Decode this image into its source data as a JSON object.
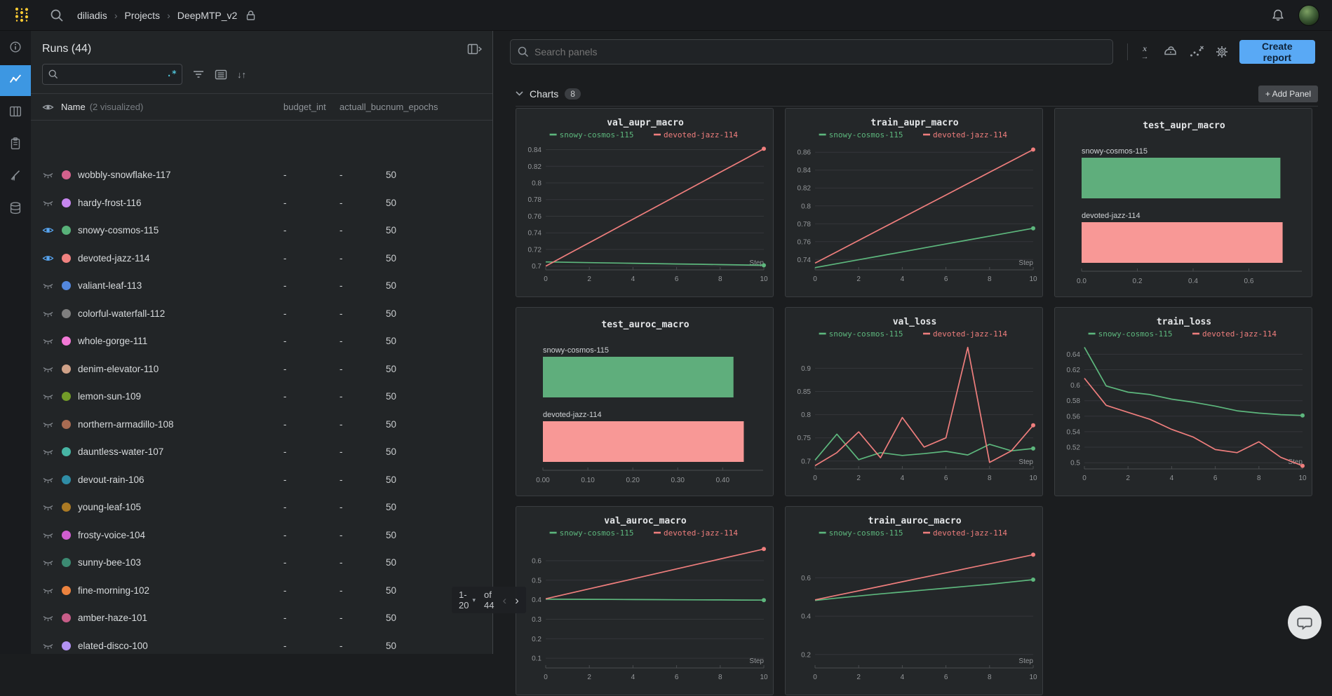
{
  "topbar": {
    "breadcrumb": [
      "diliadis",
      "Projects",
      "DeepMTP_v2"
    ]
  },
  "icons": {
    "regex": ".*",
    "sort": "↓↑",
    "add": "+",
    "caret": "▾",
    "sep": "›",
    "chev_left": "‹",
    "chev_right": "›",
    "xaxis_x": "x",
    "xaxis_arrow": "→"
  },
  "runs": {
    "title": "Runs (44)",
    "search_value": "",
    "name_header": "Name",
    "visualized": "(2 visualized)",
    "columns": [
      "budget_int",
      "actuall_buc",
      "num_epochs"
    ],
    "rows": [
      {
        "name": "wobbly-snowflake-117",
        "color": "#d4618c",
        "eye": "closed",
        "budget": "-",
        "actual": "-",
        "epochs": "50"
      },
      {
        "name": "hardy-frost-116",
        "color": "#c687ef",
        "eye": "closed",
        "budget": "-",
        "actual": "-",
        "epochs": "50"
      },
      {
        "name": "snowy-cosmos-115",
        "color": "#58b179",
        "eye": "open",
        "budget": "-",
        "actual": "-",
        "epochs": "50"
      },
      {
        "name": "devoted-jazz-114",
        "color": "#f08280",
        "eye": "open",
        "budget": "-",
        "actual": "-",
        "epochs": "50"
      },
      {
        "name": "valiant-leaf-113",
        "color": "#5387dd",
        "eye": "closed",
        "budget": "-",
        "actual": "-",
        "epochs": "50"
      },
      {
        "name": "colorful-waterfall-112",
        "color": "#7f7f7f",
        "eye": "closed",
        "budget": "-",
        "actual": "-",
        "epochs": "50"
      },
      {
        "name": "whole-gorge-111",
        "color": "#f279d6",
        "eye": "closed",
        "budget": "-",
        "actual": "-",
        "epochs": "50"
      },
      {
        "name": "denim-elevator-110",
        "color": "#cfa188",
        "eye": "closed",
        "budget": "-",
        "actual": "-",
        "epochs": "50"
      },
      {
        "name": "lemon-sun-109",
        "color": "#729b28",
        "eye": "closed",
        "budget": "-",
        "actual": "-",
        "epochs": "50"
      },
      {
        "name": "northern-armadillo-108",
        "color": "#a86b52",
        "eye": "closed",
        "budget": "-",
        "actual": "-",
        "epochs": "50"
      },
      {
        "name": "dauntless-water-107",
        "color": "#47b5a4",
        "eye": "closed",
        "budget": "-",
        "actual": "-",
        "epochs": "50"
      },
      {
        "name": "devout-rain-106",
        "color": "#2f8da6",
        "eye": "closed",
        "budget": "-",
        "actual": "-",
        "epochs": "50"
      },
      {
        "name": "young-leaf-105",
        "color": "#ab7a24",
        "eye": "closed",
        "budget": "-",
        "actual": "-",
        "epochs": "50"
      },
      {
        "name": "frosty-voice-104",
        "color": "#d05ed0",
        "eye": "closed",
        "budget": "-",
        "actual": "-",
        "epochs": "50"
      },
      {
        "name": "sunny-bee-103",
        "color": "#3c8a72",
        "eye": "closed",
        "budget": "-",
        "actual": "-",
        "epochs": "50"
      },
      {
        "name": "fine-morning-102",
        "color": "#ec833f",
        "eye": "closed",
        "budget": "-",
        "actual": "-",
        "epochs": "50"
      },
      {
        "name": "amber-haze-101",
        "color": "#c75d88",
        "eye": "closed",
        "budget": "-",
        "actual": "-",
        "epochs": "50"
      },
      {
        "name": "elated-disco-100",
        "color": "#b292f2",
        "eye": "closed",
        "budget": "-",
        "actual": "-",
        "epochs": "50"
      }
    ],
    "pagination": {
      "range": "1-20",
      "of": "of 44"
    }
  },
  "main": {
    "search_placeholder": "Search panels",
    "create_report": "Create report",
    "section": {
      "title": "Charts",
      "count": "8",
      "add_panel": "Add Panel"
    }
  },
  "chart_data": [
    {
      "type": "line",
      "title": "val_aupr_macro",
      "xlabel": "Step",
      "xticks": [
        0,
        2,
        4,
        6,
        8,
        10
      ],
      "yticks": [
        0.7,
        0.72,
        0.74,
        0.76,
        0.78,
        0.8,
        0.82,
        0.84
      ],
      "ylim": [
        0.6955,
        0.8455
      ],
      "series": [
        {
          "name": "snowy-cosmos-115",
          "color": "#5db77d",
          "values": [
            0.705,
            0.7046,
            0.7042,
            0.7038,
            0.7034,
            0.703,
            0.7026,
            0.7022,
            0.7018,
            0.7014,
            0.701
          ]
        },
        {
          "name": "devoted-jazz-114",
          "color": "#ef7e7d",
          "values": [
            0.7,
            0.7141,
            0.7282,
            0.7423,
            0.7564,
            0.7705,
            0.7846,
            0.7987,
            0.8128,
            0.8269,
            0.841
          ]
        }
      ]
    },
    {
      "type": "line",
      "title": "train_aupr_macro",
      "xlabel": "Step",
      "xticks": [
        0,
        2,
        4,
        6,
        8,
        10
      ],
      "yticks": [
        0.74,
        0.76,
        0.78,
        0.8,
        0.82,
        0.84,
        0.86
      ],
      "ylim": [
        0.7285,
        0.868
      ],
      "series": [
        {
          "name": "snowy-cosmos-115",
          "color": "#5db77d",
          "values": [
            0.731,
            0.7354,
            0.7398,
            0.7442,
            0.7486,
            0.753,
            0.7574,
            0.7618,
            0.7662,
            0.7706,
            0.775
          ]
        },
        {
          "name": "devoted-jazz-114",
          "color": "#ef7e7d",
          "values": [
            0.736,
            0.7487,
            0.7614,
            0.7741,
            0.7868,
            0.7995,
            0.8122,
            0.8249,
            0.8376,
            0.8503,
            0.863
          ]
        }
      ]
    },
    {
      "type": "bar",
      "title": "test_aupr_macro",
      "xlim": [
        0,
        0.79
      ],
      "xtick_labels": [
        "0.0",
        "0.2",
        "0.4",
        "0.6"
      ],
      "xtick_vals": [
        0,
        0.2,
        0.4,
        0.6
      ],
      "bars": [
        {
          "name": "snowy-cosmos-115",
          "color": "#5fae7c",
          "value": 0.713
        },
        {
          "name": "devoted-jazz-114",
          "color": "#f89896",
          "value": 0.721
        }
      ]
    },
    {
      "type": "bar",
      "title": "test_auroc_macro",
      "xlim": [
        0,
        0.49
      ],
      "xtick_labels": [
        "0.00",
        "0.10",
        "0.20",
        "0.30",
        "0.40"
      ],
      "xtick_vals": [
        0,
        0.1,
        0.2,
        0.3,
        0.4
      ],
      "bars": [
        {
          "name": "snowy-cosmos-115",
          "color": "#5fae7c",
          "value": 0.424
        },
        {
          "name": "devoted-jazz-114",
          "color": "#f89896",
          "value": 0.447
        }
      ]
    },
    {
      "type": "line",
      "title": "val_loss",
      "xlabel": "Step",
      "xticks": [
        0,
        2,
        4,
        6,
        8,
        10
      ],
      "yticks": [
        0.7,
        0.75,
        0.8,
        0.85,
        0.9
      ],
      "ylim": [
        0.683,
        0.952
      ],
      "series": [
        {
          "name": "snowy-cosmos-115",
          "color": "#5db77d",
          "values": [
            0.702,
            0.758,
            0.703,
            0.718,
            0.712,
            0.716,
            0.721,
            0.713,
            0.736,
            0.722,
            0.727
          ]
        },
        {
          "name": "devoted-jazz-114",
          "color": "#ef7e7d",
          "values": [
            0.69,
            0.718,
            0.763,
            0.707,
            0.794,
            0.73,
            0.75,
            0.945,
            0.697,
            0.722,
            0.777
          ]
        }
      ]
    },
    {
      "type": "line",
      "title": "train_loss",
      "xlabel": "Step",
      "xticks": [
        0,
        2,
        4,
        6,
        8,
        10
      ],
      "yticks": [
        0.5,
        0.52,
        0.54,
        0.56,
        0.58,
        0.6,
        0.62,
        0.64
      ],
      "ylim": [
        0.492,
        0.653
      ],
      "series": [
        {
          "name": "snowy-cosmos-115",
          "color": "#5db77d",
          "values": [
            0.649,
            0.599,
            0.591,
            0.588,
            0.582,
            0.578,
            0.573,
            0.567,
            0.564,
            0.562,
            0.561
          ]
        },
        {
          "name": "devoted-jazz-114",
          "color": "#ef7e7d",
          "values": [
            0.609,
            0.574,
            0.565,
            0.556,
            0.543,
            0.533,
            0.517,
            0.513,
            0.527,
            0.507,
            0.496
          ]
        }
      ]
    },
    {
      "type": "line",
      "title": "val_auroc_macro",
      "xlabel": "Step",
      "xticks": [
        0,
        2,
        4,
        6,
        8,
        10
      ],
      "yticks": [
        0.1,
        0.2,
        0.3,
        0.4,
        0.5,
        0.6
      ],
      "ylim": [
        0.05,
        0.69
      ],
      "series": [
        {
          "name": "snowy-cosmos-115",
          "color": "#5db77d",
          "values": [
            0.403,
            0.4025,
            0.402,
            0.4015,
            0.401,
            0.4005,
            0.4,
            0.3995,
            0.399,
            0.3985,
            0.398
          ]
        },
        {
          "name": "devoted-jazz-114",
          "color": "#ef7e7d",
          "values": [
            0.405,
            0.4305,
            0.456,
            0.4815,
            0.507,
            0.5325,
            0.558,
            0.5835,
            0.609,
            0.6345,
            0.66
          ]
        }
      ]
    },
    {
      "type": "line",
      "title": "train_auroc_macro",
      "xlabel": "Step",
      "xticks": [
        0,
        2,
        4,
        6,
        8,
        10
      ],
      "yticks": [
        0.2,
        0.4,
        0.6
      ],
      "ylim": [
        0.13,
        0.78
      ],
      "series": [
        {
          "name": "snowy-cosmos-115",
          "color": "#5db77d",
          "values": [
            0.482,
            0.494,
            0.505,
            0.516,
            0.526,
            0.536,
            0.546,
            0.556,
            0.566,
            0.578,
            0.59
          ]
        },
        {
          "name": "devoted-jazz-114",
          "color": "#ef7e7d",
          "values": [
            0.485,
            0.5085,
            0.532,
            0.5555,
            0.579,
            0.6025,
            0.626,
            0.6495,
            0.673,
            0.6965,
            0.72
          ]
        }
      ]
    }
  ]
}
